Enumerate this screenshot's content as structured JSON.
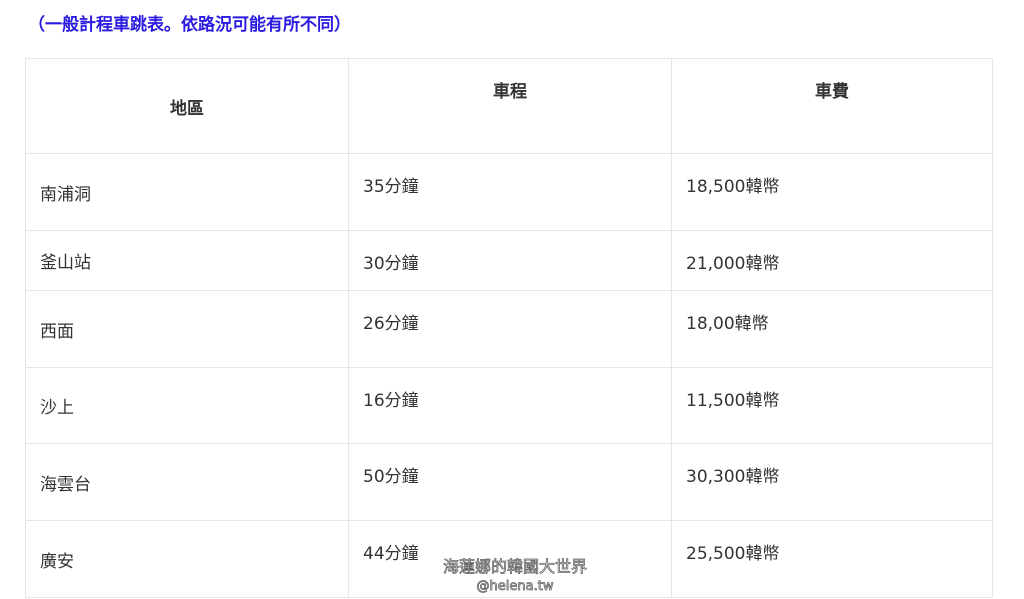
{
  "note": "（一般計程車跳表。依路況可能有所不同）",
  "table": {
    "headers": [
      "地區",
      "車程",
      "車費"
    ],
    "rows": [
      [
        "南浦洞",
        "35分鐘",
        "18,500韓幣"
      ],
      [
        "釜山站",
        "30分鐘",
        "21,000韓幣"
      ],
      [
        "西面",
        "26分鐘",
        "18,00韓幣"
      ],
      [
        "沙上",
        "16分鐘",
        "11,500韓幣"
      ],
      [
        "海雲台",
        "50分鐘",
        "30,300韓幣"
      ],
      [
        "廣安",
        "44分鐘",
        "25,500韓幣"
      ]
    ]
  },
  "watermark": {
    "line1": "海蓮娜的韓國大世界",
    "line2": "@helena.tw"
  }
}
